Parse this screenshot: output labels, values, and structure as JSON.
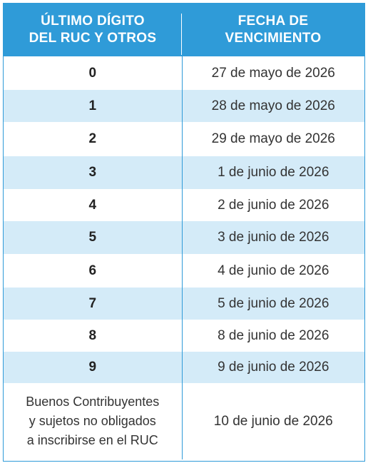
{
  "header": {
    "col1_line1": "ÚLTIMO DÍGITO",
    "col1_line2": "DEL RUC Y OTROS",
    "col2_line1": "FECHA DE",
    "col2_line2": "VENCIMIENTO"
  },
  "rows": [
    {
      "digit": "0",
      "date": "27 de mayo de 2026"
    },
    {
      "digit": "1",
      "date": "28 de mayo de 2026"
    },
    {
      "digit": "2",
      "date": "29 de mayo de 2026"
    },
    {
      "digit": "3",
      "date": "1 de junio de 2026"
    },
    {
      "digit": "4",
      "date": "2 de junio de 2026"
    },
    {
      "digit": "5",
      "date": "3 de junio de 2026"
    },
    {
      "digit": "6",
      "date": "4 de junio de 2026"
    },
    {
      "digit": "7",
      "date": "5 de junio de 2026"
    },
    {
      "digit": "8",
      "date": "8 de junio de 2026"
    },
    {
      "digit": "9",
      "date": "9 de junio de 2026"
    }
  ],
  "last_row": {
    "label_line1": "Buenos Contribuyentes",
    "label_line2": "y sujetos no obligados",
    "label_line3": "a inscribirse en el RUC",
    "date": "10 de junio de 2026"
  },
  "colors": {
    "header_bg": "#2f9bd8",
    "alt_row_bg": "#d4ebf8",
    "border": "#2f9bd8"
  }
}
